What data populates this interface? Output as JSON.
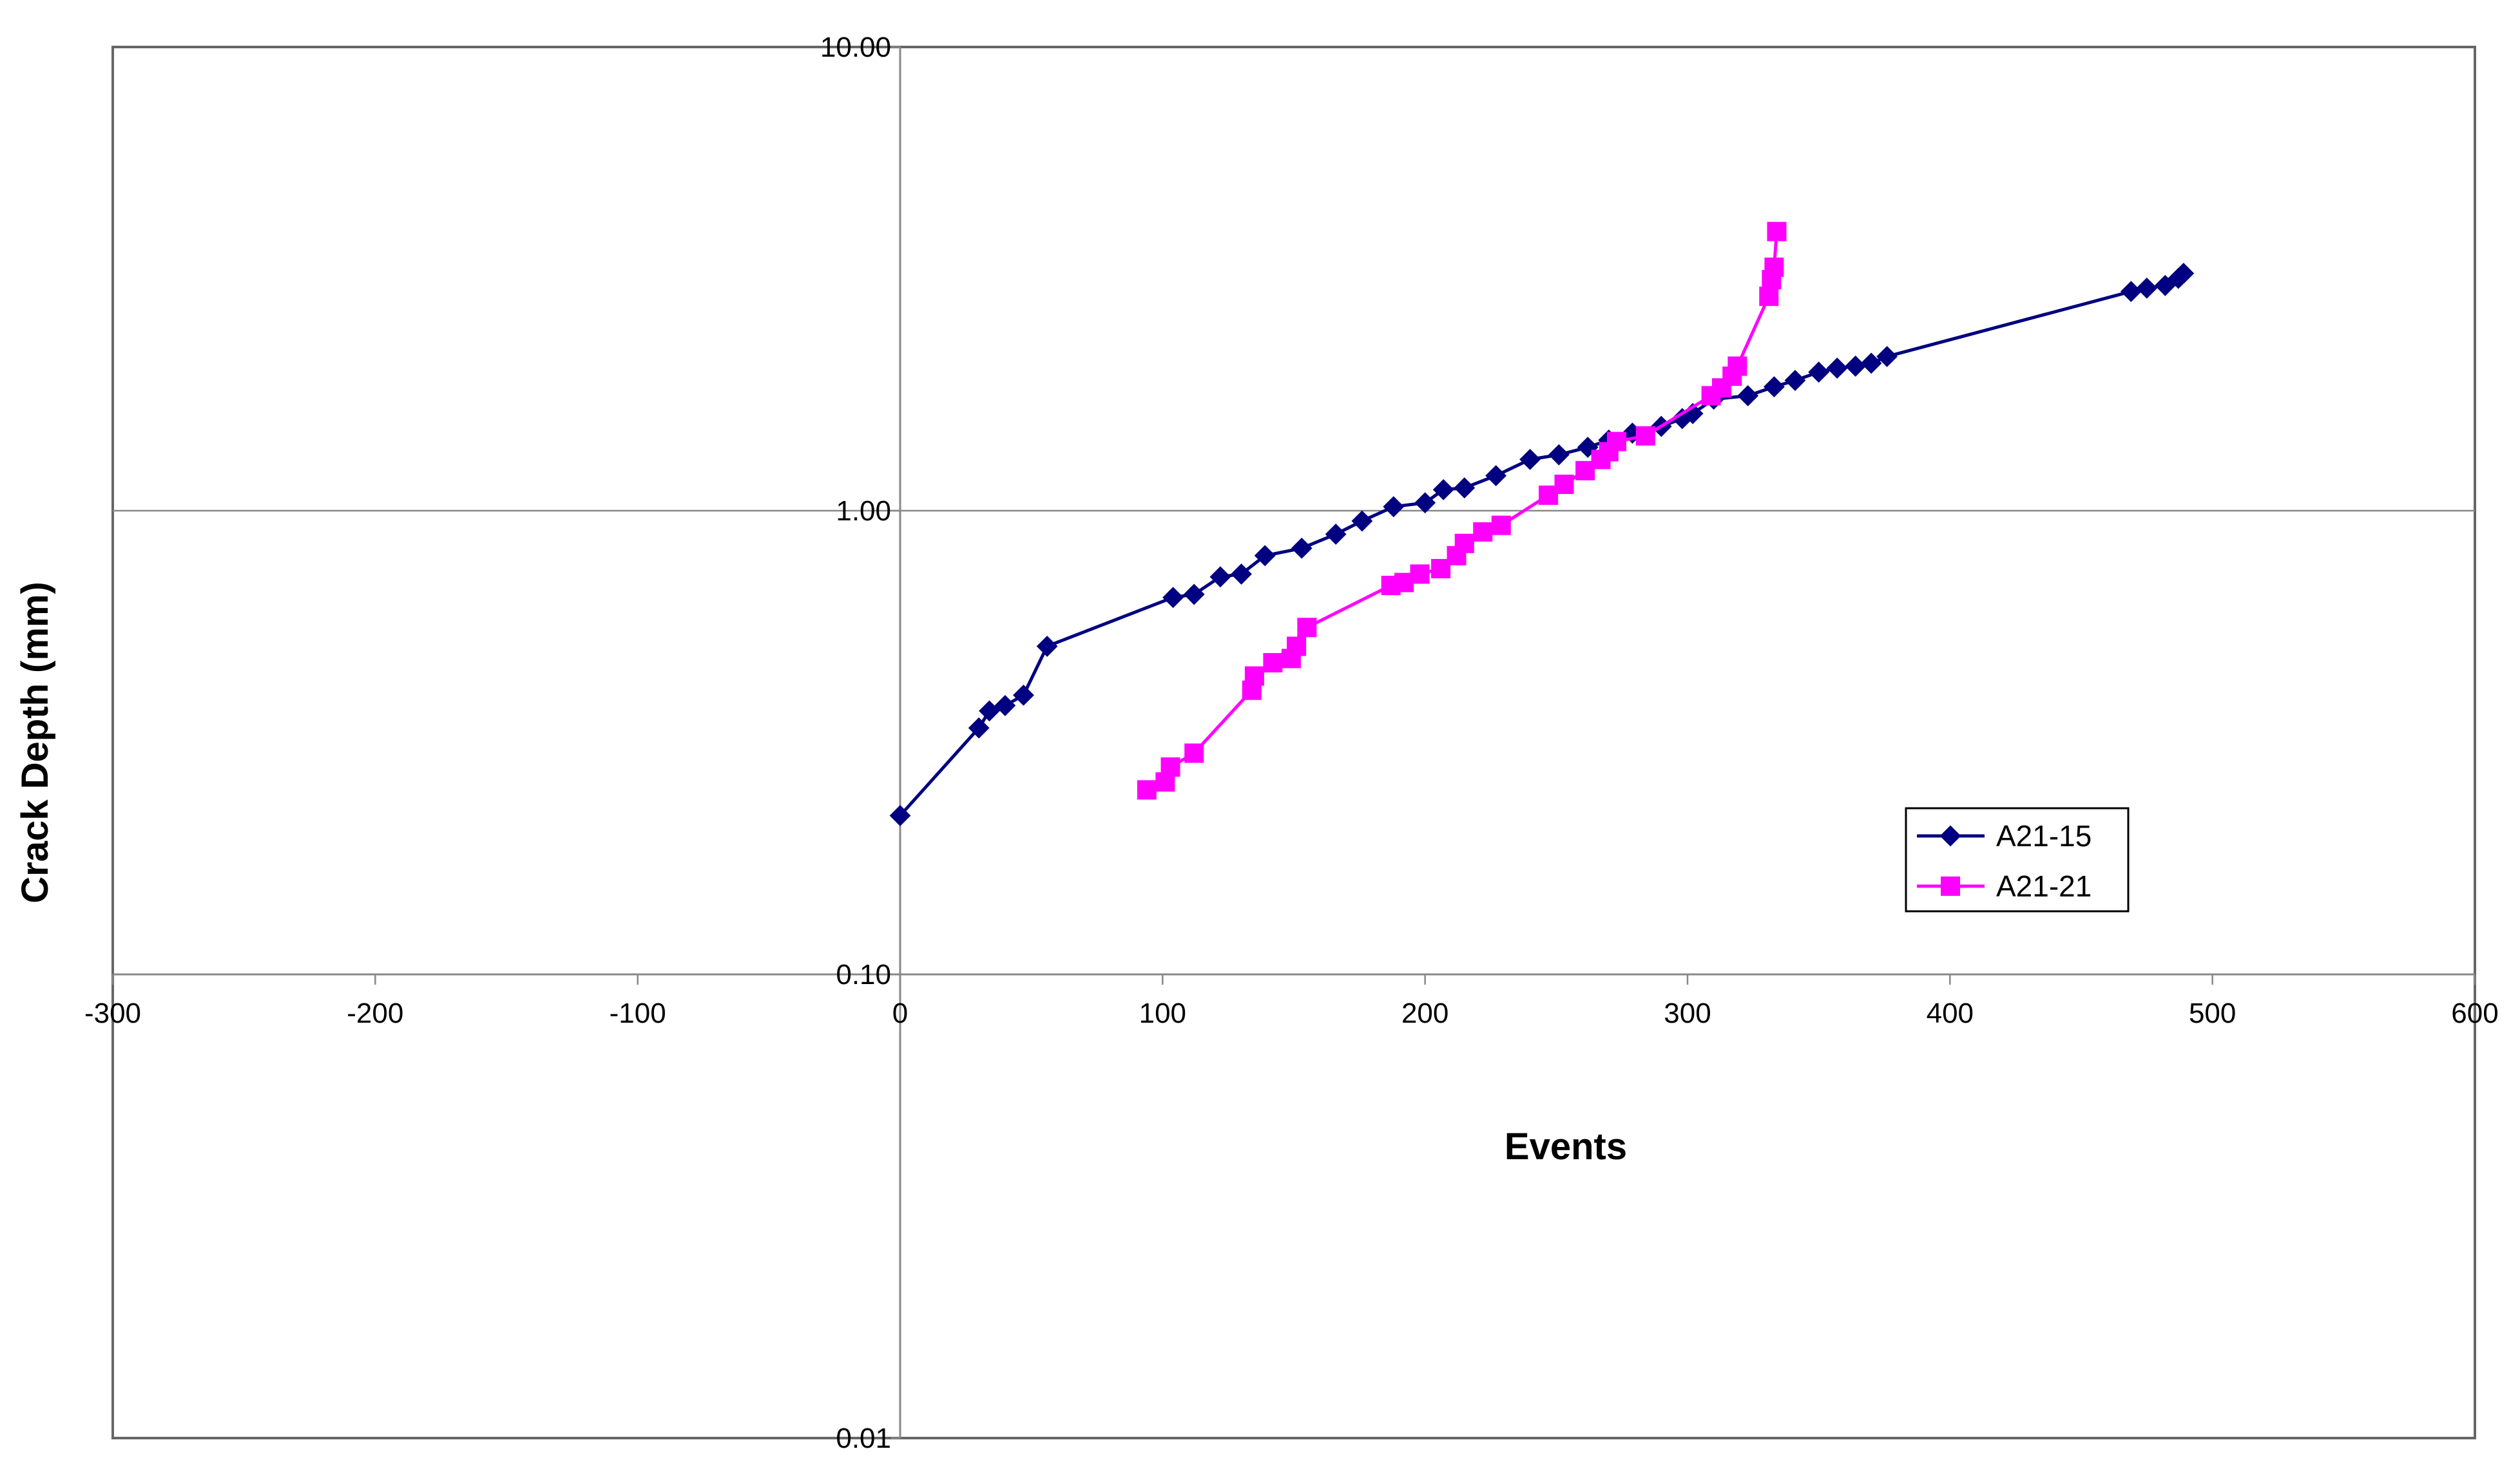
{
  "chart_data": {
    "type": "scatter",
    "title": "",
    "xlabel": "Events",
    "ylabel": "Crack Depth (mm)",
    "xlim": [
      -300,
      600
    ],
    "ylim": [
      0.01,
      10
    ],
    "yscale": "log",
    "x_ticks": [
      "-300",
      "-200",
      "-100",
      "0",
      "100",
      "200",
      "300",
      "400",
      "500",
      "600"
    ],
    "y_ticks": [
      "0.01",
      "0.10",
      "1.00",
      "10.00"
    ],
    "grid": "major",
    "legend_position": "right",
    "series": [
      {
        "name": "A21-15",
        "color": "#000080",
        "marker": "diamond",
        "points": [
          [
            0,
            0.22
          ],
          [
            30,
            0.34
          ],
          [
            34,
            0.37
          ],
          [
            40,
            0.38
          ],
          [
            47,
            0.4
          ],
          [
            56,
            0.51
          ],
          [
            104,
            0.65
          ],
          [
            112,
            0.66
          ],
          [
            122,
            0.72
          ],
          [
            130,
            0.73
          ],
          [
            139,
            0.8
          ],
          [
            153,
            0.83
          ],
          [
            166,
            0.89
          ],
          [
            176,
            0.95
          ],
          [
            188,
            1.02
          ],
          [
            200,
            1.04
          ],
          [
            207,
            1.11
          ],
          [
            215,
            1.12
          ],
          [
            227,
            1.19
          ],
          [
            240,
            1.29
          ],
          [
            251,
            1.32
          ],
          [
            262,
            1.37
          ],
          [
            270,
            1.42
          ],
          [
            279,
            1.47
          ],
          [
            290,
            1.52
          ],
          [
            298,
            1.58
          ],
          [
            302,
            1.62
          ],
          [
            310,
            1.74
          ],
          [
            323,
            1.77
          ],
          [
            333,
            1.85
          ],
          [
            341,
            1.91
          ],
          [
            350,
            1.99
          ],
          [
            357,
            2.03
          ],
          [
            364,
            2.05
          ],
          [
            370,
            2.08
          ],
          [
            376,
            2.15
          ],
          [
            469,
            2.97
          ],
          [
            475,
            3.02
          ],
          [
            482,
            3.06
          ],
          [
            487,
            3.17
          ],
          [
            489,
            3.25
          ]
        ]
      },
      {
        "name": "A21-21",
        "color": "#FF00FF",
        "marker": "square",
        "points": [
          [
            94,
            0.25
          ],
          [
            101,
            0.26
          ],
          [
            103,
            0.28
          ],
          [
            112,
            0.3
          ],
          [
            134,
            0.41
          ],
          [
            135,
            0.44
          ],
          [
            142,
            0.47
          ],
          [
            149,
            0.48
          ],
          [
            151,
            0.51
          ],
          [
            155,
            0.56
          ],
          [
            187,
            0.69
          ],
          [
            192,
            0.7
          ],
          [
            198,
            0.73
          ],
          [
            206,
            0.75
          ],
          [
            212,
            0.8
          ],
          [
            215,
            0.85
          ],
          [
            222,
            0.9
          ],
          [
            229,
            0.93
          ],
          [
            247,
            1.08
          ],
          [
            253,
            1.14
          ],
          [
            261,
            1.22
          ],
          [
            267,
            1.29
          ],
          [
            270,
            1.34
          ],
          [
            273,
            1.41
          ],
          [
            284,
            1.45
          ],
          [
            309,
            1.77
          ],
          [
            313,
            1.84
          ],
          [
            317,
            1.95
          ],
          [
            319,
            2.05
          ],
          [
            331,
            2.9
          ],
          [
            332,
            3.15
          ],
          [
            333,
            3.35
          ],
          [
            334,
            4.0
          ]
        ]
      }
    ]
  }
}
